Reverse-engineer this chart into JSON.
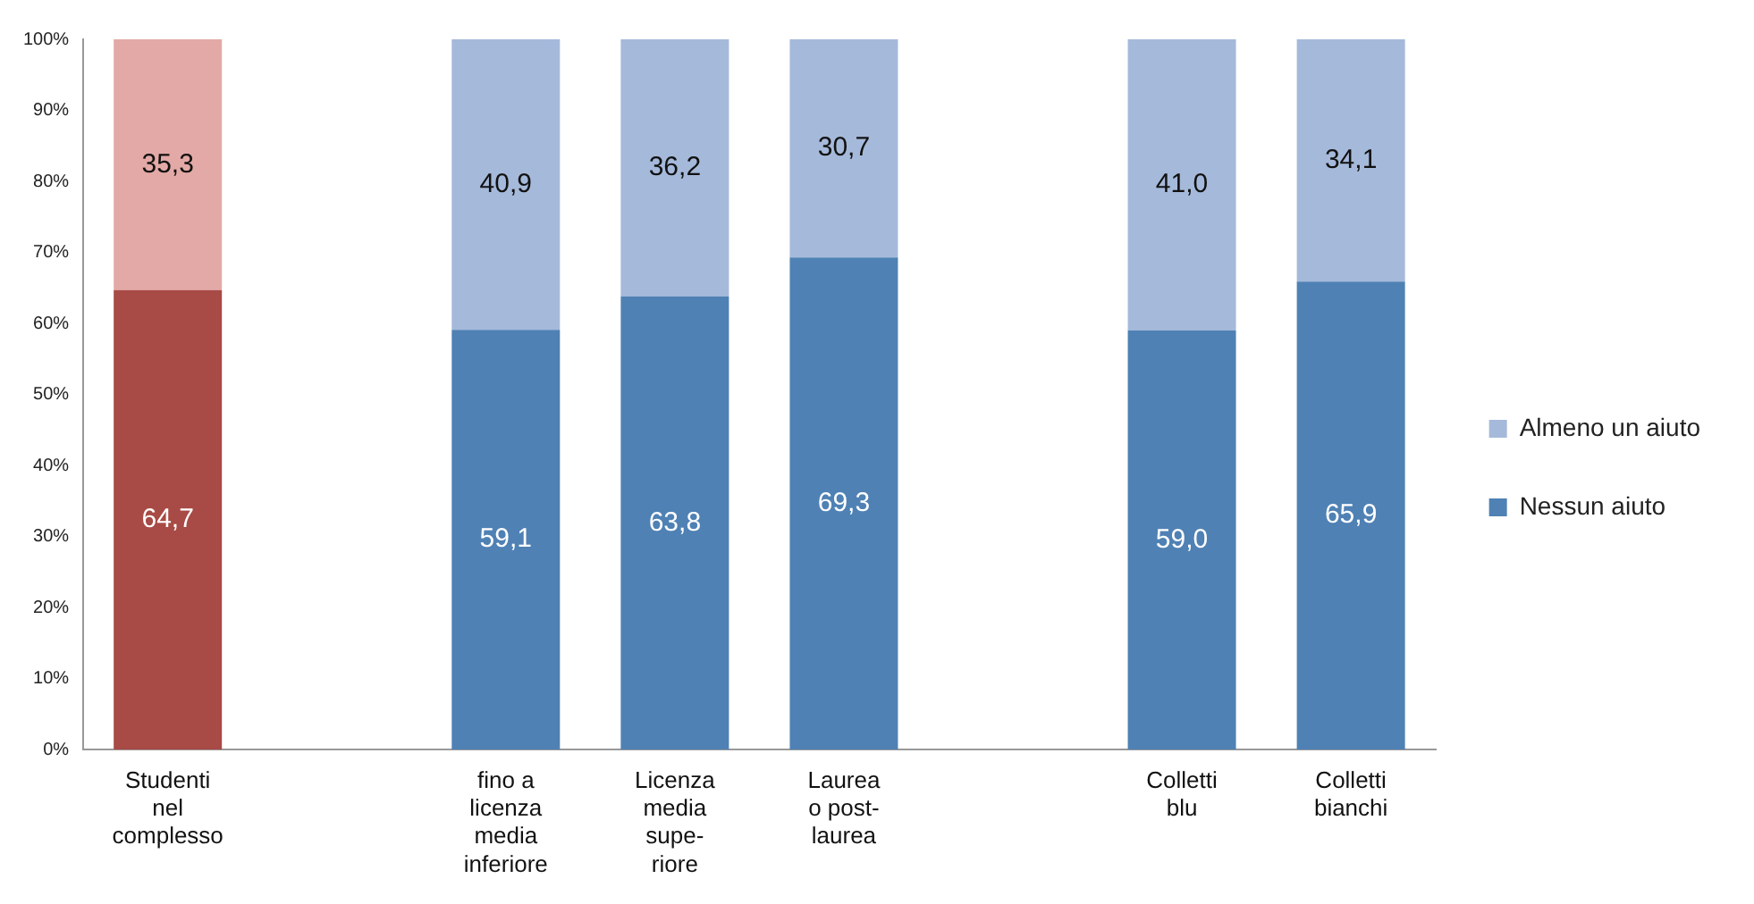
{
  "chart_data": {
    "type": "bar",
    "stacked": true,
    "categories": [
      "Studenti\nnel\ncomplesso",
      null,
      "fino a\nlicenza\nmedia\ninferiore",
      "Licenza\nmedia\nsupe-\nriore",
      "Laurea\no post-\nlaurea",
      null,
      "Colletti\nblu",
      "Colletti\nbianchi"
    ],
    "series": [
      {
        "name": "Nessun aiuto",
        "color": "#4f81b4",
        "colors": [
          "#a84a45",
          null,
          "#4f81b4",
          "#4f81b4",
          "#4f81b4",
          null,
          "#4f81b4",
          "#4f81b4"
        ],
        "values": [
          64.7,
          null,
          59.1,
          63.8,
          69.3,
          null,
          59.0,
          65.9
        ],
        "value_labels": [
          "64,7",
          null,
          "59,1",
          "63,8",
          "69,3",
          null,
          "59,0",
          "65,9"
        ]
      },
      {
        "name": "Almeno un aiuto",
        "color": "#a5b9da",
        "colors": [
          "#e3a9a6",
          null,
          "#a5b9da",
          "#a5b9da",
          "#a5b9da",
          null,
          "#a5b9da",
          "#a5b9da"
        ],
        "values": [
          35.3,
          null,
          40.9,
          36.2,
          30.7,
          null,
          41.0,
          34.1
        ],
        "value_labels": [
          "35,3",
          null,
          "40,9",
          "36,2",
          "30,7",
          null,
          "41,0",
          "34,1"
        ]
      }
    ],
    "ylim": [
      0,
      100
    ],
    "yticks": [
      {
        "value": 0,
        "label": "0%"
      },
      {
        "value": 10,
        "label": "10%"
      },
      {
        "value": 20,
        "label": "20%"
      },
      {
        "value": 30,
        "label": "30%"
      },
      {
        "value": 40,
        "label": "40%"
      },
      {
        "value": 50,
        "label": "50%"
      },
      {
        "value": 60,
        "label": "60%"
      },
      {
        "value": 70,
        "label": "70%"
      },
      {
        "value": 80,
        "label": "80%"
      },
      {
        "value": 90,
        "label": "90%"
      },
      {
        "value": 100,
        "label": "100%"
      }
    ],
    "grid": false,
    "legend": "right"
  }
}
